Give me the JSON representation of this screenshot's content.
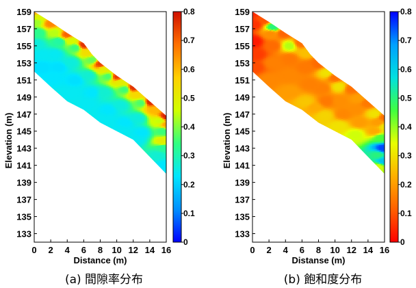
{
  "chart_data": [
    {
      "type": "heatmap",
      "caption": "(a) 間隙率分布",
      "xlabel": "Distance (m)",
      "ylabel": "Elevation (m)",
      "xlim": [
        0,
        16
      ],
      "ylim": [
        132,
        159
      ],
      "x_ticks": [
        "0",
        "2",
        "4",
        "6",
        "8",
        "10",
        "12",
        "14",
        "16"
      ],
      "y_ticks": [
        "159",
        "157",
        "155",
        "153",
        "151",
        "149",
        "147",
        "145",
        "143",
        "141",
        "139",
        "137",
        "135",
        "133"
      ],
      "colorbar": {
        "range": [
          0,
          0.8
        ],
        "ticks": [
          "0.8",
          "0.7",
          "0.6",
          "0.5",
          "0.4",
          "0.3",
          "0.2",
          "0.1",
          "0"
        ],
        "colors": [
          "#0000ff",
          "#0090ff",
          "#00e6ff",
          "#30ff80",
          "#d0ff00",
          "#ffd000",
          "#ff7000",
          "#d01000"
        ]
      },
      "domain_surface": [
        [
          0,
          159
        ],
        [
          2,
          157.8
        ],
        [
          4,
          156.5
        ],
        [
          6,
          155.3
        ],
        [
          7,
          154
        ],
        [
          8,
          153
        ],
        [
          10,
          151.5
        ],
        [
          12,
          150.2
        ],
        [
          14,
          148.5
        ],
        [
          16,
          146.8
        ]
      ],
      "domain_base": [
        [
          0,
          152
        ],
        [
          2,
          150.2
        ],
        [
          4,
          148.5
        ],
        [
          6,
          147.5
        ],
        [
          8,
          146
        ],
        [
          10,
          145
        ],
        [
          12,
          144
        ],
        [
          14,
          142
        ],
        [
          16,
          140
        ]
      ],
      "field": [
        [
          0,
          159,
          0.62
        ],
        [
          0.5,
          158.3,
          0.48
        ],
        [
          0.3,
          157.8,
          0.42
        ],
        [
          0.5,
          156.5,
          0.33
        ],
        [
          0.3,
          155.2,
          0.26
        ],
        [
          1,
          154,
          0.24
        ],
        [
          1,
          152.5,
          0.22
        ],
        [
          2,
          157.6,
          0.66
        ],
        [
          2.5,
          156.5,
          0.44
        ],
        [
          3,
          155.5,
          0.31
        ],
        [
          2.5,
          154,
          0.24
        ],
        [
          3,
          152.5,
          0.22
        ],
        [
          2.5,
          151.2,
          0.23
        ],
        [
          4,
          156.3,
          0.7
        ],
        [
          4.5,
          155.6,
          0.47
        ],
        [
          5,
          154.8,
          0.35
        ],
        [
          4.5,
          153,
          0.26
        ],
        [
          5,
          151,
          0.22
        ],
        [
          4.5,
          149.5,
          0.24
        ],
        [
          6,
          155.1,
          0.76
        ],
        [
          6.5,
          154.2,
          0.54
        ],
        [
          7,
          153.3,
          0.38
        ],
        [
          6.5,
          151.5,
          0.27
        ],
        [
          7,
          149.5,
          0.23
        ],
        [
          6.5,
          148.2,
          0.24
        ],
        [
          8,
          152.9,
          0.74
        ],
        [
          8.5,
          152.2,
          0.5
        ],
        [
          9,
          151.4,
          0.36
        ],
        [
          8.5,
          149.5,
          0.27
        ],
        [
          9,
          147.5,
          0.23
        ],
        [
          8.5,
          146.3,
          0.24
        ],
        [
          10,
          151.4,
          0.75
        ],
        [
          10.5,
          150.7,
          0.5
        ],
        [
          11,
          149.9,
          0.35
        ],
        [
          10.5,
          148,
          0.26
        ],
        [
          11,
          146,
          0.23
        ],
        [
          10.5,
          145.2,
          0.24
        ],
        [
          12,
          150.1,
          0.76
        ],
        [
          12.5,
          149.3,
          0.55
        ],
        [
          13,
          148.3,
          0.36
        ],
        [
          12.5,
          146.5,
          0.26
        ],
        [
          13,
          144.8,
          0.23
        ],
        [
          12.5,
          144.1,
          0.24
        ],
        [
          14,
          148.4,
          0.77
        ],
        [
          14.5,
          147.5,
          0.6
        ],
        [
          15.2,
          146.2,
          0.45
        ],
        [
          15.5,
          145,
          0.35
        ],
        [
          15.5,
          143.8,
          0.5
        ],
        [
          15.5,
          143,
          0.32
        ],
        [
          15,
          142.2,
          0.27
        ],
        [
          15.8,
          141,
          0.23
        ],
        [
          16,
          146.7,
          0.78
        ],
        [
          16,
          145.8,
          0.62
        ]
      ]
    },
    {
      "type": "heatmap",
      "caption": "(b) 飽和度分布",
      "xlabel": "Distanse (m)",
      "ylabel": "Elevation (m)",
      "xlim": [
        0,
        16
      ],
      "ylim": [
        132,
        159
      ],
      "x_ticks": [
        "0",
        "2",
        "4",
        "6",
        "8",
        "10",
        "12",
        "14",
        "16"
      ],
      "y_ticks": [
        "159",
        "157",
        "155",
        "153",
        "151",
        "149",
        "147",
        "145",
        "143",
        "141",
        "139",
        "137",
        "135",
        "133"
      ],
      "colorbar": {
        "range": [
          0,
          0.8
        ],
        "ticks": [
          "0.8",
          "0.7",
          "0.6",
          "0.5",
          "0.4",
          "0.3",
          "0.2",
          "0.1",
          "0"
        ],
        "colors": [
          "#ff0000",
          "#ff6000",
          "#ffb000",
          "#e8ff00",
          "#40ff40",
          "#00e0e0",
          "#00a0ff",
          "#0000ff"
        ]
      },
      "domain_surface": [
        [
          0,
          159
        ],
        [
          2,
          157.8
        ],
        [
          4,
          156.5
        ],
        [
          6,
          155.3
        ],
        [
          7,
          154
        ],
        [
          8,
          153
        ],
        [
          10,
          151.5
        ],
        [
          12,
          150.2
        ],
        [
          14,
          148.5
        ],
        [
          16,
          146.8
        ]
      ],
      "domain_base": [
        [
          0,
          152
        ],
        [
          2,
          150.2
        ],
        [
          4,
          148.5
        ],
        [
          6,
          147.5
        ],
        [
          8,
          146
        ],
        [
          10,
          145
        ],
        [
          12,
          144
        ],
        [
          14,
          142
        ],
        [
          16,
          140
        ]
      ],
      "field": [
        [
          0,
          159,
          0.05
        ],
        [
          0.3,
          157.5,
          0.06
        ],
        [
          0.2,
          155.5,
          0.03
        ],
        [
          0.5,
          154,
          0.07
        ],
        [
          0.3,
          152.5,
          0.09
        ],
        [
          1.5,
          158,
          0.1
        ],
        [
          2.5,
          157.2,
          0.5
        ],
        [
          2.2,
          156.4,
          0.18
        ],
        [
          2.5,
          155,
          0.13
        ],
        [
          2.5,
          153,
          0.16
        ],
        [
          2,
          151,
          0.17
        ],
        [
          3.8,
          156.5,
          0.12
        ],
        [
          4.5,
          155,
          0.38
        ],
        [
          4.5,
          153.5,
          0.15
        ],
        [
          4.5,
          151.5,
          0.17
        ],
        [
          4.5,
          149.6,
          0.2
        ],
        [
          5.8,
          155.3,
          0.14
        ],
        [
          6.5,
          154.2,
          0.25
        ],
        [
          6.5,
          152.5,
          0.15
        ],
        [
          7,
          150.5,
          0.16
        ],
        [
          6.5,
          148.4,
          0.26
        ],
        [
          7.5,
          147.8,
          0.22
        ],
        [
          8,
          152.9,
          0.13
        ],
        [
          9,
          151.8,
          0.3
        ],
        [
          8.5,
          150,
          0.16
        ],
        [
          9,
          148.5,
          0.15
        ],
        [
          8.8,
          146.8,
          0.28
        ],
        [
          10,
          151.3,
          0.14
        ],
        [
          10.5,
          150.2,
          0.3
        ],
        [
          10.5,
          148.5,
          0.18
        ],
        [
          11,
          147,
          0.17
        ],
        [
          10.5,
          145.6,
          0.3
        ],
        [
          12,
          150,
          0.14
        ],
        [
          12.8,
          148.8,
          0.2
        ],
        [
          12.5,
          147.5,
          0.18
        ],
        [
          13,
          146,
          0.2
        ],
        [
          12.5,
          144.6,
          0.36
        ],
        [
          14,
          148.3,
          0.15
        ],
        [
          14.8,
          147,
          0.3
        ],
        [
          15.2,
          146,
          0.2
        ],
        [
          14.8,
          145,
          0.22
        ],
        [
          15.5,
          144.2,
          0.45
        ],
        [
          15.8,
          143,
          0.75
        ],
        [
          15.2,
          142.2,
          0.5
        ],
        [
          15.8,
          141.5,
          0.62
        ],
        [
          15.3,
          140.8,
          0.36
        ],
        [
          16,
          146.6,
          0.14
        ],
        [
          16,
          145.5,
          0.3
        ]
      ]
    }
  ]
}
